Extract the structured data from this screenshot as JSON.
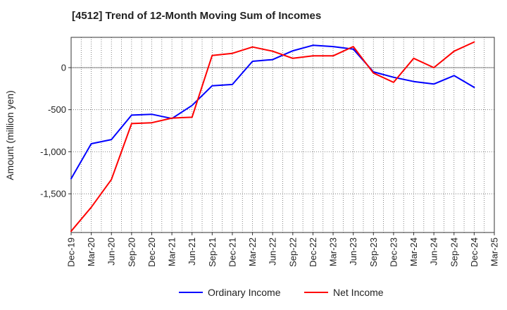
{
  "chart_data": {
    "type": "line",
    "title": "[4512]  Trend of 12-Month Moving Sum of Incomes",
    "xlabel": "",
    "ylabel": "Amount (million yen)",
    "ylim": [
      -1960,
      360
    ],
    "yticks": [
      0,
      -500,
      -1000,
      -1500
    ],
    "ytick_labels": [
      "0",
      "-500",
      "-1,000",
      "-1,500"
    ],
    "categories": [
      "Dec-19",
      "Mar-20",
      "Jun-20",
      "Sep-20",
      "Dec-20",
      "Mar-21",
      "Jun-21",
      "Sep-21",
      "Dec-21",
      "Mar-22",
      "Jun-22",
      "Sep-22",
      "Dec-22",
      "Mar-23",
      "Jun-23",
      "Sep-23",
      "Dec-23",
      "Mar-24",
      "Jun-24",
      "Sep-24",
      "Dec-24",
      "Mar-25"
    ],
    "series": [
      {
        "name": "Ordinary Income",
        "color": "#0000ff",
        "values": [
          -1320,
          -905,
          -855,
          -565,
          -555,
          -605,
          -450,
          -215,
          -200,
          75,
          95,
          200,
          265,
          250,
          220,
          -50,
          -115,
          -165,
          -195,
          -95,
          -235,
          null
        ]
      },
      {
        "name": "Net Income",
        "color": "#ff0000",
        "values": [
          -1945,
          -1660,
          -1330,
          -665,
          -655,
          -600,
          -590,
          145,
          170,
          245,
          195,
          110,
          140,
          140,
          250,
          -65,
          -175,
          110,
          0,
          195,
          305,
          null
        ]
      }
    ],
    "legend_position": "bottom-center",
    "grid": true
  }
}
